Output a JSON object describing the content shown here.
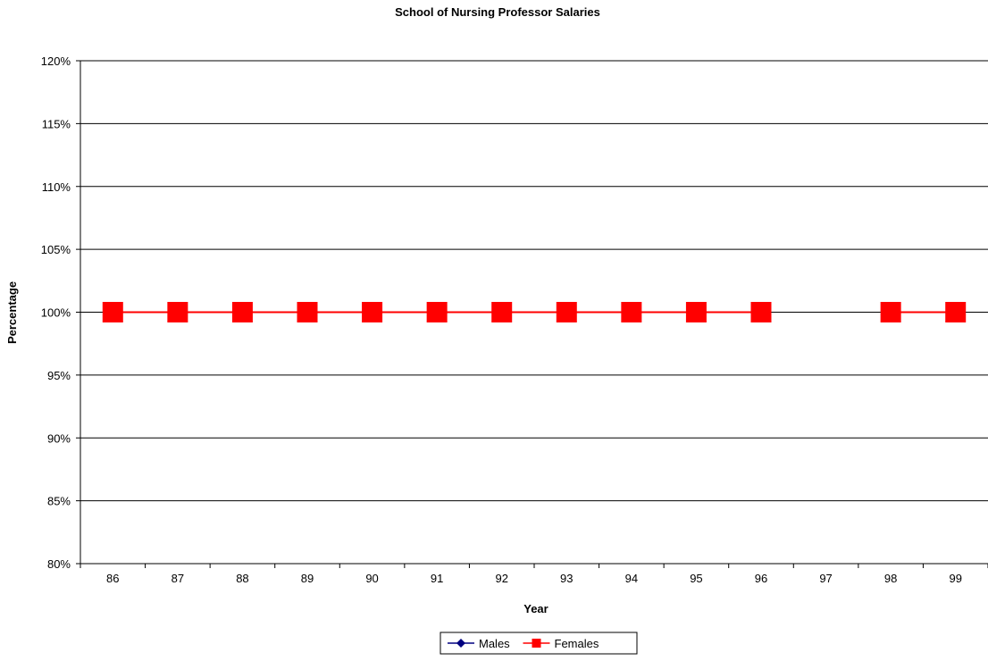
{
  "chart_data": {
    "type": "line",
    "title": "School of Nursing Professor Salaries",
    "xlabel": "Year",
    "ylabel": "Percentage",
    "categories": [
      "86",
      "87",
      "88",
      "89",
      "90",
      "91",
      "92",
      "93",
      "94",
      "95",
      "96",
      "97",
      "98",
      "99"
    ],
    "ylim": [
      0.8,
      1.2
    ],
    "y_ticks": [
      "80%",
      "85%",
      "90%",
      "95%",
      "100%",
      "105%",
      "110%",
      "115%",
      "120%"
    ],
    "y_tick_values": [
      0.8,
      0.85,
      0.9,
      0.95,
      1.0,
      1.05,
      1.1,
      1.15,
      1.2
    ],
    "grid": true,
    "legend_position": "bottom",
    "series": [
      {
        "name": "Males",
        "color": "#000080",
        "marker": "diamond",
        "values": [
          1.0,
          1.0,
          1.0,
          1.0,
          1.0,
          1.0,
          1.0,
          1.0,
          1.0,
          1.0,
          1.0,
          null,
          1.0,
          1.0
        ]
      },
      {
        "name": "Females",
        "color": "#ff0000",
        "marker": "square",
        "values": [
          1.0,
          1.0,
          1.0,
          1.0,
          1.0,
          1.0,
          1.0,
          1.0,
          1.0,
          1.0,
          1.0,
          null,
          1.0,
          1.0
        ]
      }
    ]
  }
}
